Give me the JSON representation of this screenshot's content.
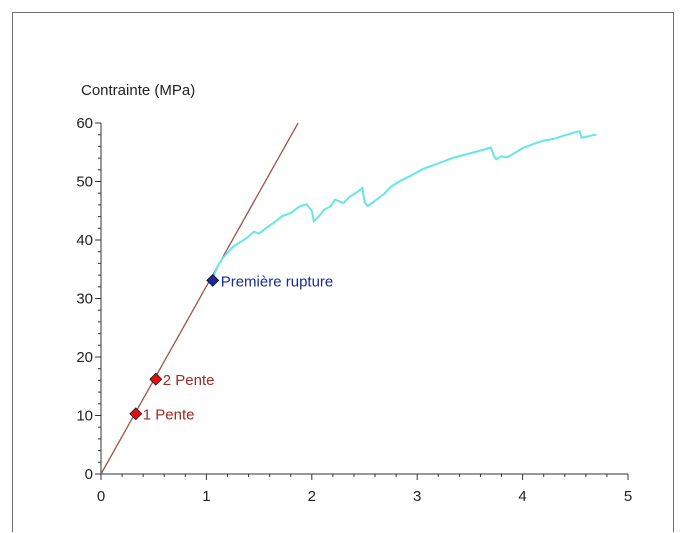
{
  "chart_data": {
    "type": "line",
    "title": "",
    "xlabel": "",
    "ylabel": "Contrainte (MPa)",
    "xlim": [
      0,
      5
    ],
    "ylim": [
      0,
      60
    ],
    "x_ticks": [
      0,
      1,
      2,
      3,
      4,
      5
    ],
    "y_ticks": [
      0,
      10,
      20,
      30,
      40,
      50,
      60
    ],
    "grid": false,
    "colors": {
      "slope_line": "#a0524a",
      "curve": "#66e6e6",
      "pente_marker": "#dd1111",
      "pente_text": "#a02a20",
      "rupture_marker": "#1a2a9a",
      "rupture_text": "#1a2a9a",
      "axis": "#333333"
    },
    "series": [
      {
        "style": "slope-line",
        "x": [
          0,
          1.87
        ],
        "y": [
          0,
          60
        ]
      },
      {
        "style": "stress-curve",
        "x": [
          1.06,
          1.1,
          1.15,
          1.2,
          1.25,
          1.3,
          1.38,
          1.45,
          1.5,
          1.58,
          1.65,
          1.72,
          1.8,
          1.88,
          1.95,
          2.0,
          2.02,
          2.06,
          2.12,
          2.18,
          2.22,
          2.3,
          2.36,
          2.44,
          2.48,
          2.5,
          2.53,
          2.6,
          2.68,
          2.75,
          2.85,
          2.95,
          3.05,
          3.2,
          3.35,
          3.5,
          3.6,
          3.7,
          3.73,
          3.75,
          3.8,
          3.85,
          3.92,
          4.0,
          4.1,
          4.2,
          4.3,
          4.4,
          4.48,
          4.54,
          4.56,
          4.6,
          4.66,
          4.7
        ],
        "y": [
          33.3,
          35.3,
          36.8,
          37.8,
          38.8,
          39.4,
          40.3,
          41.4,
          41.1,
          42.2,
          43.1,
          44.1,
          44.6,
          45.7,
          46.1,
          45.0,
          43.2,
          43.9,
          45.2,
          45.8,
          46.9,
          46.3,
          47.4,
          48.3,
          48.9,
          46.5,
          45.8,
          46.7,
          47.8,
          49.1,
          50.2,
          51.1,
          52.1,
          53.1,
          54.1,
          54.8,
          55.3,
          55.8,
          54.3,
          53.8,
          54.3,
          54.1,
          54.8,
          55.7,
          56.4,
          57.0,
          57.3,
          57.9,
          58.3,
          58.6,
          57.5,
          57.6,
          57.9,
          58.0
        ]
      }
    ],
    "points": [
      {
        "label": "1 Pente",
        "x": 0.33,
        "y": 10.3,
        "role": "pente"
      },
      {
        "label": "2 Pente",
        "x": 0.52,
        "y": 16.2,
        "role": "pente"
      },
      {
        "label": "Première rupture",
        "x": 1.06,
        "y": 33.1,
        "role": "rupture"
      }
    ]
  }
}
